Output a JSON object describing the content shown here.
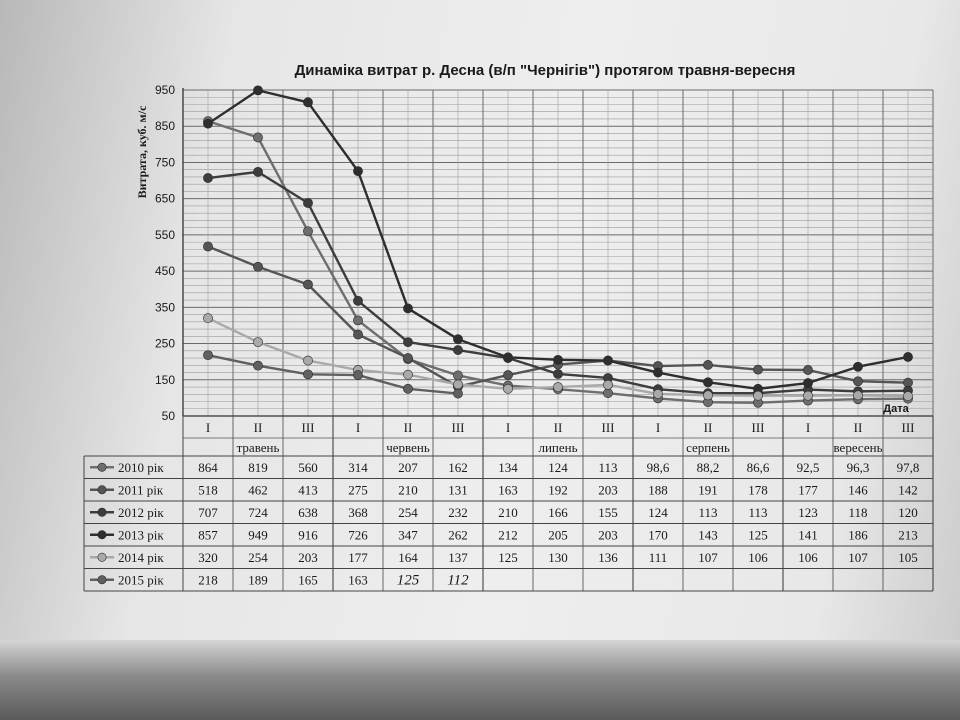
{
  "chart_data": {
    "type": "line",
    "title": "Динаміка витрат р. Десна (в/п \"Чернігів\") протягом травня-вересня",
    "ylabel": "Витрата, куб. м/с",
    "xlabel": "Дата",
    "ylim": [
      50,
      950
    ],
    "yticks": [
      50,
      150,
      250,
      350,
      450,
      550,
      650,
      750,
      850,
      950
    ],
    "grid": true,
    "decades": [
      "I",
      "II",
      "III",
      "I",
      "II",
      "III",
      "I",
      "II",
      "III",
      "I",
      "II",
      "III",
      "I",
      "II",
      "III"
    ],
    "months": [
      "травень",
      "червень",
      "липень",
      "серпень",
      "вересень"
    ],
    "series": [
      {
        "name": "2010 рік",
        "color": "#6e6e6e",
        "values": [
          864,
          819,
          560,
          314,
          207,
          162,
          134,
          124,
          113,
          98.6,
          88.2,
          86.6,
          92.5,
          96.3,
          97.8
        ],
        "labels": [
          "864",
          "819",
          "560",
          "314",
          "207",
          "162",
          "134",
          "124",
          "113",
          "98,6",
          "88,2",
          "86,6",
          "92,5",
          "96,3",
          "97,8"
        ]
      },
      {
        "name": "2011 рік",
        "color": "#555555",
        "values": [
          518,
          462,
          413,
          275,
          210,
          131,
          163,
          192,
          203,
          188,
          191,
          178,
          177,
          146,
          142
        ],
        "labels": [
          "518",
          "462",
          "413",
          "275",
          "210",
          "131",
          "163",
          "192",
          "203",
          "188",
          "191",
          "178",
          "177",
          "146",
          "142"
        ]
      },
      {
        "name": "2012 рік",
        "color": "#3d3d3d",
        "values": [
          707,
          724,
          638,
          368,
          254,
          232,
          210,
          166,
          155,
          124,
          113,
          113,
          123,
          118,
          120
        ],
        "labels": [
          "707",
          "724",
          "638",
          "368",
          "254",
          "232",
          "210",
          "166",
          "155",
          "124",
          "113",
          "113",
          "123",
          "118",
          "120"
        ]
      },
      {
        "name": "2013 рік",
        "color": "#2e2e2e",
        "values": [
          857,
          949,
          916,
          726,
          347,
          262,
          212,
          205,
          203,
          170,
          143,
          125,
          141,
          186,
          213
        ],
        "labels": [
          "857",
          "949",
          "916",
          "726",
          "347",
          "262",
          "212",
          "205",
          "203",
          "170",
          "143",
          "125",
          "141",
          "186",
          "213"
        ]
      },
      {
        "name": "2014 рік",
        "color": "#a9a9a9",
        "values": [
          320,
          254,
          203,
          177,
          164,
          137,
          125,
          130,
          136,
          111,
          107,
          106,
          106,
          107,
          105
        ],
        "labels": [
          "320",
          "254",
          "203",
          "177",
          "164",
          "137",
          "125",
          "130",
          "136",
          "111",
          "107",
          "106",
          "106",
          "107",
          "105"
        ]
      },
      {
        "name": "2015 рік",
        "color": "#606060",
        "values": [
          218,
          189,
          165,
          163,
          125,
          112
        ],
        "labels": [
          "218",
          "189",
          "165",
          "163",
          "125",
          "112"
        ],
        "handwritten_from_index": 4
      }
    ]
  }
}
